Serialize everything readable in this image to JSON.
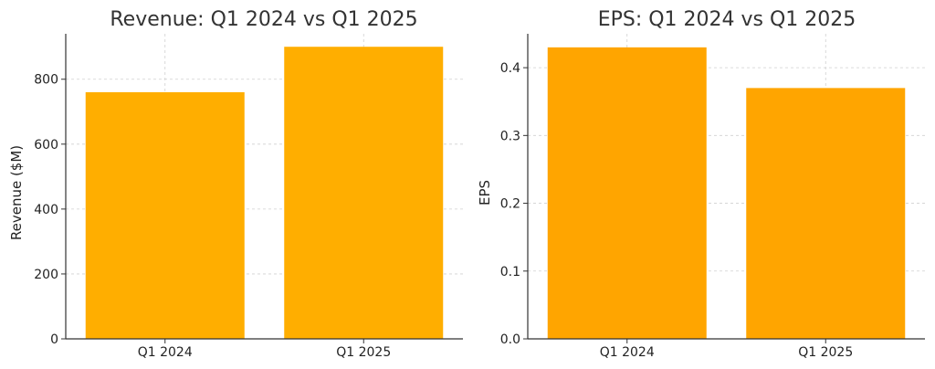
{
  "chart_data": [
    {
      "type": "bar",
      "title": "Revenue: Q1 2024 vs Q1 2025",
      "xlabel": "",
      "ylabel": "Revenue ($M)",
      "categories": [
        "Q1 2024",
        "Q1 2025"
      ],
      "values": [
        760,
        900
      ],
      "ylim": [
        0,
        940
      ],
      "yticks": [
        0,
        200,
        400,
        600,
        800
      ],
      "ytick_labels": [
        "0",
        "200",
        "400",
        "600",
        "800"
      ],
      "grid": true,
      "bar_color": "#FFAE00"
    },
    {
      "type": "bar",
      "title": "EPS: Q1 2024 vs Q1 2025",
      "xlabel": "",
      "ylabel": "EPS",
      "categories": [
        "Q1 2024",
        "Q1 2025"
      ],
      "values": [
        0.43,
        0.37
      ],
      "ylim": [
        0,
        0.45
      ],
      "yticks": [
        0,
        0.1,
        0.2,
        0.3,
        0.4
      ],
      "ytick_labels": [
        "0.0",
        "0.1",
        "0.2",
        "0.3",
        "0.4"
      ],
      "grid": true,
      "bar_color": "#FFA500"
    }
  ]
}
